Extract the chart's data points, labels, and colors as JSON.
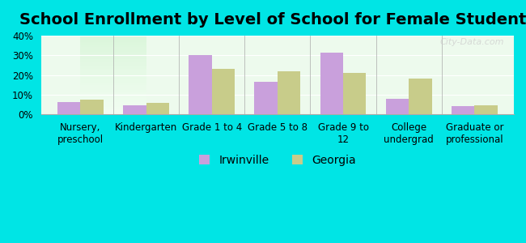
{
  "title": "School Enrollment by Level of School for Female Students",
  "categories": [
    "Nursery,\npreschool",
    "Kindergarten",
    "Grade 1 to 4",
    "Grade 5 to 8",
    "Grade 9 to\n12",
    "College\nundergrad",
    "Graduate or\nprofessional"
  ],
  "irwinville": [
    6.2,
    4.5,
    30.0,
    16.5,
    31.2,
    8.0,
    4.0
  ],
  "georgia": [
    7.5,
    6.0,
    23.0,
    22.0,
    21.0,
    18.0,
    4.5
  ],
  "irwinville_color": "#c9a0dc",
  "georgia_color": "#c8cc8a",
  "background_color": "#00e5e5",
  "plot_bg_gradient_top": "#f0fff0",
  "plot_bg_gradient_bottom": "#e8ffe8",
  "ylim": [
    0,
    40
  ],
  "yticks": [
    0,
    10,
    20,
    30,
    40
  ],
  "ylabel_format": "%",
  "bar_width": 0.35,
  "legend_labels": [
    "Irwinville",
    "Georgia"
  ],
  "title_fontsize": 14,
  "tick_fontsize": 8.5,
  "legend_fontsize": 10
}
